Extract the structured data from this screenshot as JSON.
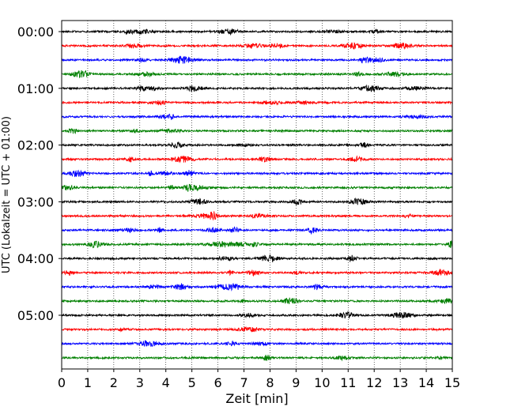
{
  "chart_data": {
    "type": "line",
    "title": "",
    "xlabel": "Zeit  [min]",
    "ylabel": "UTC (Lokalzeit = UTC + 01:00)",
    "xlim": [
      0,
      15
    ],
    "x_ticks": [
      0,
      1,
      2,
      3,
      4,
      5,
      6,
      7,
      8,
      9,
      10,
      11,
      12,
      13,
      14,
      15
    ],
    "y_tick_labels": [
      "00:00",
      "01:00",
      "02:00",
      "03:00",
      "04:00",
      "05:00"
    ],
    "traces_per_hour": 4,
    "trace_minutes": 15,
    "trace_colors": [
      "#000000",
      "#ff0000",
      "#0000ff",
      "#008000"
    ],
    "traces": [
      {
        "start": "00:00",
        "color": "#000000"
      },
      {
        "start": "00:15",
        "color": "#ff0000"
      },
      {
        "start": "00:30",
        "color": "#0000ff"
      },
      {
        "start": "00:45",
        "color": "#008000"
      },
      {
        "start": "01:00",
        "color": "#000000"
      },
      {
        "start": "01:15",
        "color": "#ff0000"
      },
      {
        "start": "01:30",
        "color": "#0000ff"
      },
      {
        "start": "01:45",
        "color": "#008000"
      },
      {
        "start": "02:00",
        "color": "#000000"
      },
      {
        "start": "02:15",
        "color": "#ff0000"
      },
      {
        "start": "02:30",
        "color": "#0000ff"
      },
      {
        "start": "02:45",
        "color": "#008000"
      },
      {
        "start": "03:00",
        "color": "#000000"
      },
      {
        "start": "03:15",
        "color": "#ff0000"
      },
      {
        "start": "03:30",
        "color": "#0000ff"
      },
      {
        "start": "03:45",
        "color": "#008000"
      },
      {
        "start": "04:00",
        "color": "#000000"
      },
      {
        "start": "04:15",
        "color": "#ff0000"
      },
      {
        "start": "04:30",
        "color": "#0000ff"
      },
      {
        "start": "04:45",
        "color": "#008000"
      },
      {
        "start": "05:00",
        "color": "#000000"
      },
      {
        "start": "05:15",
        "color": "#ff0000"
      },
      {
        "start": "05:30",
        "color": "#0000ff"
      },
      {
        "start": "05:45",
        "color": "#008000"
      }
    ],
    "vertical_grid": "dotted",
    "legend": "none"
  }
}
